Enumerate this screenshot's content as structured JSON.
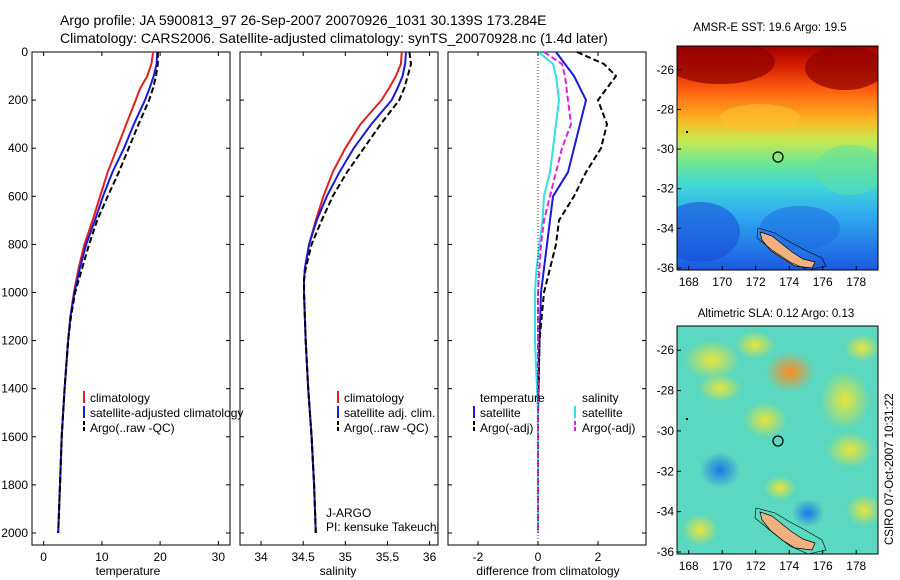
{
  "title": {
    "line1": "Argo profile: JA 5900813_97 26-Sep-2007 20070926_1031 30.139S 173.284E",
    "line2": "Climatology: CARS2006. Satellite-adjusted climatology: synTS_20070928.nc (1.4d later)"
  },
  "credit": "CSIRO 07-Oct-2007 10:31:22",
  "colors": {
    "climatology": "#e02020",
    "satellite": "#1a1ad8",
    "argo": "#000000",
    "salinity_satellite": "#33e0e0",
    "salinity_argo": "#e020e0",
    "island": "#f0b080"
  },
  "chart_data": [
    {
      "type": "line",
      "panel": "temperature",
      "xlabel": "temperature",
      "ylabel": "",
      "xlim": [
        -2,
        32
      ],
      "ylim": [
        0,
        2050
      ],
      "y_reversed": true,
      "xticks": [
        "0",
        "10",
        "20",
        "30"
      ],
      "yticks": [
        "0",
        "200",
        "400",
        "600",
        "800",
        "1000",
        "1200",
        "1400",
        "1600",
        "1800",
        "2000"
      ],
      "legend": [
        "climatology",
        "satellite-adjusted climatology",
        "Argo(..raw -QC)"
      ],
      "depth": [
        0,
        50,
        100,
        150,
        200,
        300,
        400,
        500,
        600,
        700,
        800,
        900,
        1000,
        1100,
        1200,
        1400,
        1600,
        1800,
        2000
      ],
      "series": [
        {
          "name": "climatology",
          "values": [
            18.8,
            18.5,
            17.8,
            16.6,
            15.8,
            14.2,
            12.6,
            11.0,
            9.7,
            8.4,
            7.0,
            6.0,
            5.2,
            4.6,
            4.2,
            3.6,
            3.1,
            2.8,
            2.5
          ]
        },
        {
          "name": "satellite-adjusted climatology",
          "values": [
            19.5,
            19.4,
            18.9,
            18.2,
            17.4,
            15.5,
            13.8,
            11.8,
            10.2,
            8.8,
            7.3,
            6.2,
            5.3,
            4.6,
            4.2,
            3.6,
            3.1,
            2.8,
            2.5
          ]
        },
        {
          "name": "Argo(..raw -QC)",
          "values": [
            19.6,
            19.6,
            19.3,
            18.8,
            18.1,
            16.3,
            14.6,
            12.9,
            11.0,
            9.2,
            7.8,
            6.6,
            5.4,
            4.7,
            4.2,
            3.6,
            3.1,
            2.8,
            2.5
          ]
        }
      ]
    },
    {
      "type": "line",
      "panel": "salinity",
      "xlabel": "salinity",
      "xlim": [
        33.75,
        36.1
      ],
      "ylim": [
        0,
        2050
      ],
      "y_reversed": true,
      "xticks": [
        "34",
        "34.5",
        "35",
        "35.5",
        "36"
      ],
      "legend": [
        "climatology",
        "satellite adj. clim.",
        "Argo(..raw -QC)"
      ],
      "depth": [
        0,
        50,
        100,
        150,
        200,
        300,
        400,
        500,
        600,
        700,
        800,
        900,
        950,
        1000,
        1200,
        1400,
        1600,
        1800,
        2000
      ],
      "series": [
        {
          "name": "climatology",
          "values": [
            35.67,
            35.66,
            35.6,
            35.52,
            35.43,
            35.18,
            35.0,
            34.85,
            34.74,
            34.65,
            34.57,
            34.52,
            34.51,
            34.51,
            34.53,
            34.56,
            34.6,
            34.63,
            34.65
          ]
        },
        {
          "name": "satellite adj. clim.",
          "values": [
            35.72,
            35.71,
            35.68,
            35.62,
            35.55,
            35.31,
            35.1,
            34.93,
            34.78,
            34.66,
            34.57,
            34.52,
            34.51,
            34.51,
            34.53,
            34.56,
            34.6,
            34.63,
            34.65
          ]
        },
        {
          "name": "Argo(..raw -QC)",
          "values": [
            35.76,
            35.78,
            35.74,
            35.7,
            35.64,
            35.42,
            35.22,
            35.02,
            34.85,
            34.72,
            34.6,
            34.53,
            34.51,
            34.51,
            34.53,
            34.56,
            34.6,
            34.63,
            34.65
          ]
        }
      ]
    },
    {
      "type": "line",
      "panel": "difference",
      "xlabel": "difference from climatology",
      "xlim": [
        -3,
        3.6
      ],
      "ylim": [
        0,
        2050
      ],
      "y_reversed": true,
      "xticks": [
        "-2",
        "0",
        "2"
      ],
      "legend_titles": [
        "temperature",
        "salinity"
      ],
      "legend": [
        "satellite",
        "Argo(-adj)",
        "satellite",
        "Argo(-adj)"
      ],
      "depth": [
        0,
        50,
        100,
        200,
        300,
        400,
        500,
        600,
        700,
        800,
        900,
        1000,
        1200,
        1500,
        2000
      ],
      "series": [
        {
          "name": "temperature satellite",
          "values": [
            0.6,
            0.9,
            1.2,
            1.6,
            1.4,
            1.2,
            1.0,
            0.5,
            0.4,
            0.3,
            0.2,
            0.1,
            0.05,
            0.0,
            0.0
          ]
        },
        {
          "name": "temperature Argo(-adj)",
          "values": [
            1.3,
            2.2,
            2.6,
            2.0,
            2.3,
            2.1,
            1.6,
            1.2,
            0.7,
            0.6,
            0.4,
            0.2,
            0.05,
            0.0,
            0.0
          ]
        },
        {
          "name": "salinity satellite",
          "values": [
            0.02,
            0.5,
            0.6,
            0.7,
            0.6,
            0.5,
            0.4,
            0.2,
            0.15,
            0.05,
            -0.05,
            -0.1,
            -0.1,
            0.0,
            0.0
          ]
        },
        {
          "name": "salinity Argo(-adj)",
          "values": [
            0.2,
            0.8,
            0.9,
            1.0,
            1.1,
            0.8,
            0.6,
            0.4,
            0.2,
            0.1,
            0.05,
            0.0,
            0.0,
            0.0,
            0.0
          ]
        }
      ]
    },
    {
      "type": "heatmap",
      "panel": "sst_map",
      "title": "AMSR-E SST: 19.6 Argo: 19.5",
      "xlim": [
        167.3,
        179.3
      ],
      "ylim": [
        -36.1,
        -24.8
      ],
      "xticks": [
        "168",
        "170",
        "172",
        "174",
        "176",
        "178"
      ],
      "yticks": [
        "-26",
        "-28",
        "-30",
        "-32",
        "-34",
        "-36"
      ],
      "profile_location": {
        "lon": 173.284,
        "lat": -30.139
      }
    },
    {
      "type": "heatmap",
      "panel": "sla_map",
      "title": "Altimetric SLA: 0.12 Argo: 0.13",
      "xlim": [
        167.3,
        179.3
      ],
      "ylim": [
        -36.1,
        -24.8
      ],
      "xticks": [
        "168",
        "170",
        "172",
        "174",
        "176",
        "178"
      ],
      "yticks": [
        "-26",
        "-28",
        "-30",
        "-32",
        "-34",
        "-36"
      ],
      "profile_location": {
        "lon": 173.284,
        "lat": -30.139
      }
    }
  ],
  "annotations": {
    "platform": "J-ARGO",
    "pi": "PI: kensuke Takeuchi"
  }
}
